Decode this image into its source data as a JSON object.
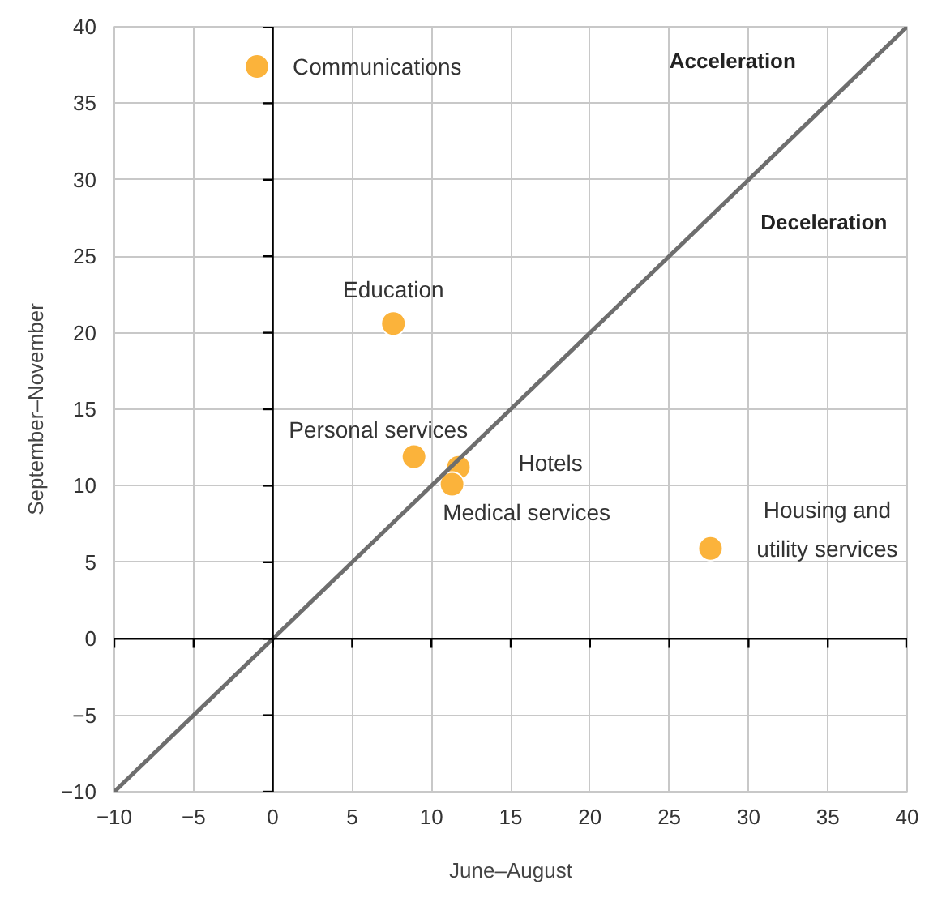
{
  "chart_data": {
    "type": "scatter",
    "xlabel": "June–August",
    "ylabel": "September–November",
    "xlim": [
      -10,
      40
    ],
    "ylim": [
      -10,
      40
    ],
    "xticks": [
      -10,
      -5,
      0,
      5,
      10,
      15,
      20,
      25,
      30,
      35,
      40
    ],
    "yticks": [
      -10,
      -5,
      0,
      5,
      10,
      15,
      20,
      25,
      30,
      35,
      40
    ],
    "grid": true,
    "marker": "circle",
    "series": [
      {
        "name": "Communications",
        "color": "#fbb33b",
        "x": [
          -1.0
        ],
        "values": [
          37.4
        ]
      },
      {
        "name": "Education",
        "color": "#fbb33b",
        "x": [
          7.6
        ],
        "values": [
          20.6
        ]
      },
      {
        "name": "Personal services",
        "color": "#fbb33b",
        "x": [
          8.9
        ],
        "values": [
          11.9
        ]
      },
      {
        "name": "Hotels",
        "color": "#fbb33b",
        "x": [
          11.7
        ],
        "values": [
          11.2
        ]
      },
      {
        "name": "Medical services",
        "color": "#fbb33b",
        "x": [
          11.3
        ],
        "values": [
          10.1
        ]
      },
      {
        "name": "Housing and\nutility services",
        "color": "#fbb33b",
        "x": [
          27.6
        ],
        "values": [
          5.9
        ]
      },
      {
        "type": "line",
        "marker": "none",
        "color": "#6e6e6e",
        "x": [
          -10,
          40
        ],
        "values": [
          -10,
          40
        ]
      }
    ],
    "annotations": [
      "Acceleration",
      "Deceleration"
    ]
  }
}
